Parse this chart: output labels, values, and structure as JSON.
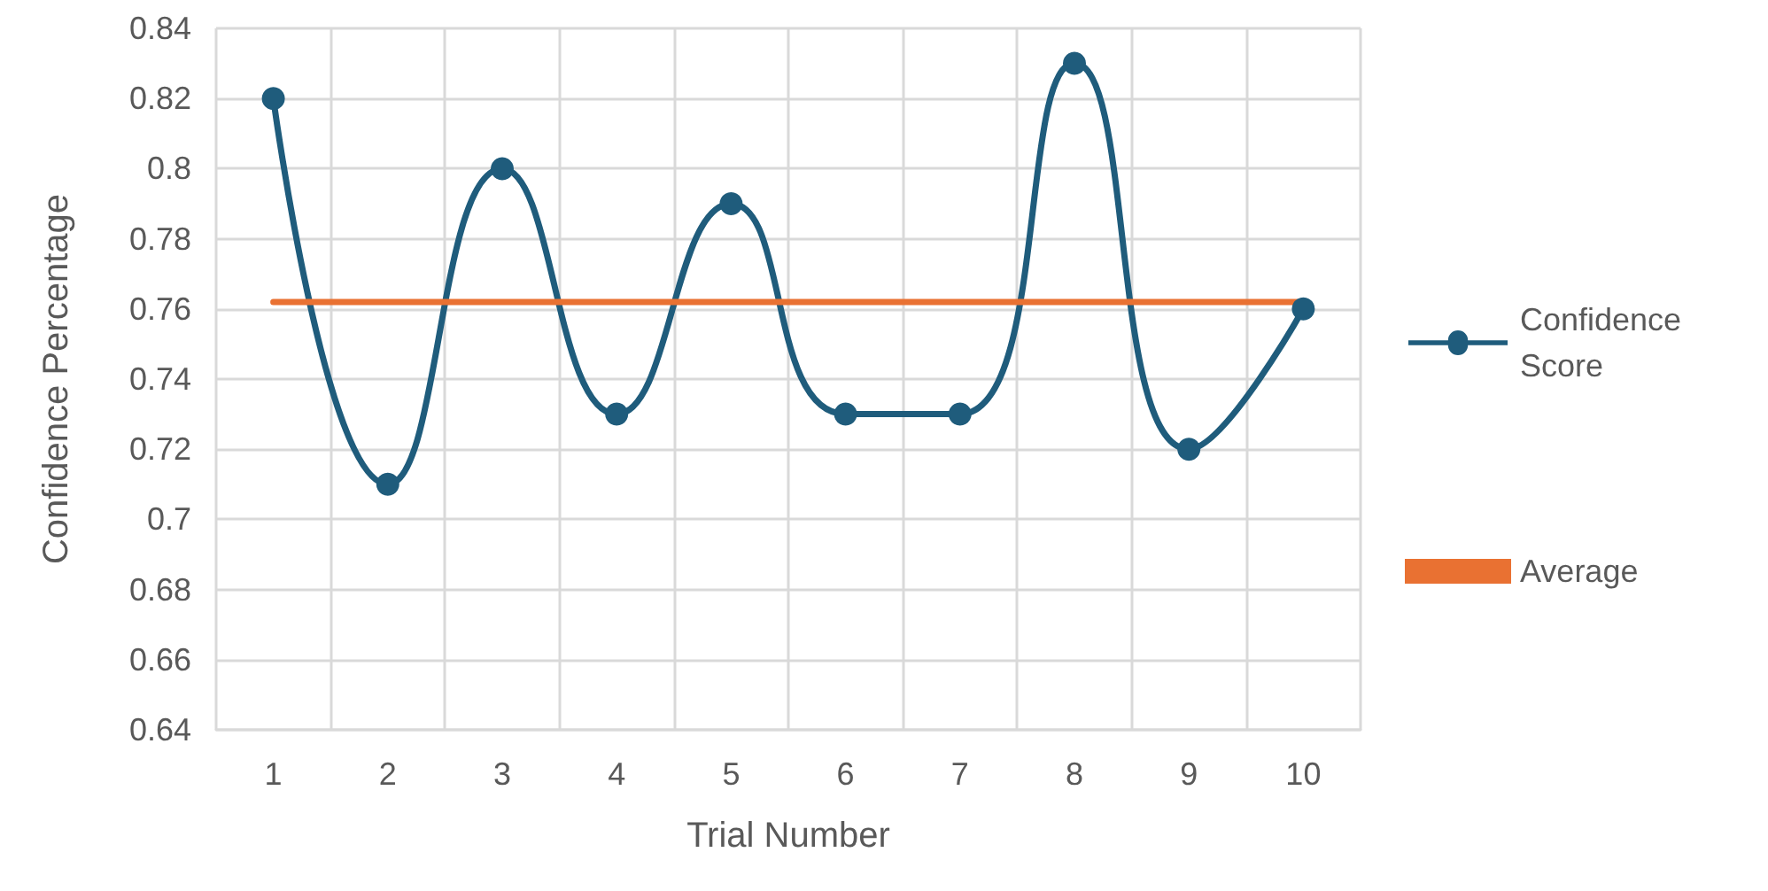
{
  "chart_data": {
    "type": "line",
    "xlabel": "Trial Number",
    "ylabel": "Confidence Percentage",
    "categories": [
      "1",
      "2",
      "3",
      "4",
      "5",
      "6",
      "7",
      "8",
      "9",
      "10"
    ],
    "series": [
      {
        "name": "Confidence Score",
        "color": "#1f5c7c",
        "marker": "circle",
        "values": [
          0.82,
          0.71,
          0.8,
          0.73,
          0.79,
          0.73,
          0.73,
          0.83,
          0.72,
          0.76
        ]
      },
      {
        "name": "Average",
        "color": "#e97132",
        "marker": "none",
        "values": [
          0.762,
          0.762,
          0.762,
          0.762,
          0.762,
          0.762,
          0.762,
          0.762,
          0.762,
          0.762
        ]
      }
    ],
    "ylim": [
      0.64,
      0.84
    ],
    "yticks": [
      0.64,
      0.66,
      0.68,
      0.7,
      0.72,
      0.74,
      0.76,
      0.78,
      0.8,
      0.82,
      0.84
    ],
    "grid": true,
    "legend": "right",
    "line_style": "solid"
  }
}
